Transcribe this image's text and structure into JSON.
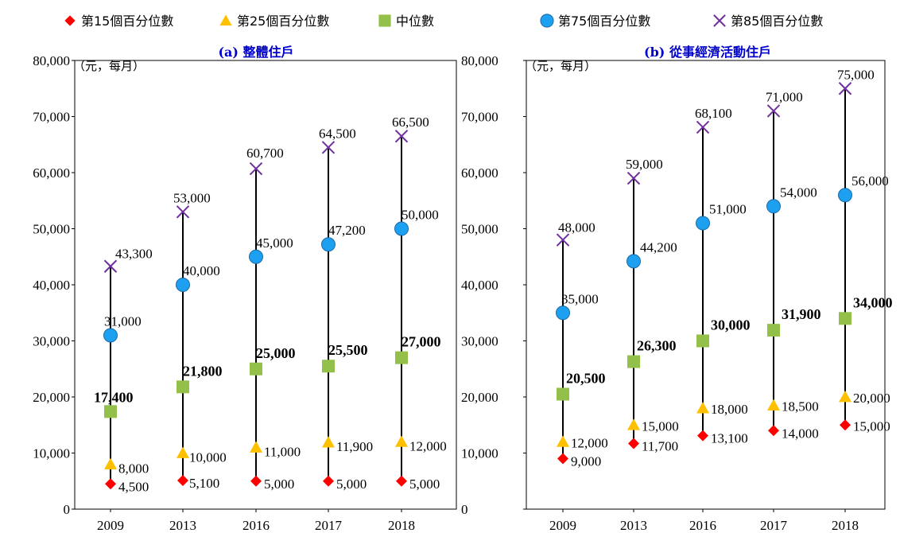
{
  "legend": [
    {
      "key": "p15",
      "label": "第15個百分位數",
      "marker": "diamond",
      "color": "#ff0000"
    },
    {
      "key": "p25",
      "label": "第25個百分位數",
      "marker": "triangle",
      "color": "#ffc000"
    },
    {
      "key": "median",
      "label": "中位數",
      "marker": "square",
      "color": "#92c048"
    },
    {
      "key": "p75",
      "label": "第75個百分位數",
      "marker": "circle",
      "color": "#1ea0f0"
    },
    {
      "key": "p85",
      "label": "第85個百分位數",
      "marker": "x",
      "color": "#7030a0"
    }
  ],
  "chart_data": [
    {
      "type": "scatter",
      "title": "(a) 整體住戶",
      "ylabel": "（元，每月）",
      "ylim": [
        0,
        80000
      ],
      "yticks": [
        0,
        10000,
        20000,
        30000,
        40000,
        50000,
        60000,
        70000,
        80000
      ],
      "ytick_labels": [
        "0",
        "10,000",
        "20,000",
        "30,000",
        "40,000",
        "50,000",
        "60,000",
        "70,000",
        "80,000"
      ],
      "categories": [
        "2009",
        "2013",
        "2016",
        "2017",
        "2018"
      ],
      "series": [
        {
          "key": "p15",
          "name": "第15個百分位數",
          "values": [
            4500,
            5100,
            5000,
            5000,
            5000
          ],
          "labels": [
            "4,500",
            "5,100",
            "5,000",
            "5,000",
            "5,000"
          ]
        },
        {
          "key": "p25",
          "name": "第25個百分位數",
          "values": [
            8000,
            10000,
            11000,
            11900,
            12000
          ],
          "labels": [
            "8,000",
            "10,000",
            "11,000",
            "11,900",
            "12,000"
          ]
        },
        {
          "key": "median",
          "name": "中位數",
          "values": [
            17400,
            21800,
            25000,
            25500,
            27000
          ],
          "labels": [
            "17,400",
            "21,800",
            "25,000",
            "25,500",
            "27,000"
          ]
        },
        {
          "key": "p75",
          "name": "第75個百分位數",
          "values": [
            31000,
            40000,
            45000,
            47200,
            50000
          ],
          "labels": [
            "31,000",
            "40,000",
            "45,000",
            "47,200",
            "50,000"
          ]
        },
        {
          "key": "p85",
          "name": "第85個百分位數",
          "values": [
            43300,
            53000,
            60700,
            64500,
            66500
          ],
          "labels": [
            "43,300",
            "53,000",
            "60,700",
            "64,500",
            "66,500"
          ]
        }
      ]
    },
    {
      "type": "scatter",
      "title": "(b) 從事經濟活動住戶",
      "ylabel": "（元，每月）",
      "ylim": [
        0,
        80000
      ],
      "yticks": [
        0,
        10000,
        20000,
        30000,
        40000,
        50000,
        60000,
        70000,
        80000
      ],
      "ytick_labels": [
        "0",
        "10,000",
        "20,000",
        "30,000",
        "40,000",
        "50,000",
        "60,000",
        "70,000",
        "80,000"
      ],
      "categories": [
        "2009",
        "2013",
        "2016",
        "2017",
        "2018"
      ],
      "series": [
        {
          "key": "p15",
          "name": "第15個百分位數",
          "values": [
            9000,
            11700,
            13100,
            14000,
            15000
          ],
          "labels": [
            "9,000",
            "11,700",
            "13,100",
            "14,000",
            "15,000"
          ]
        },
        {
          "key": "p25",
          "name": "第25個百分位數",
          "values": [
            12000,
            15000,
            18000,
            18500,
            20000
          ],
          "labels": [
            "12,000",
            "15,000",
            "18,000",
            "18,500",
            "20,000"
          ]
        },
        {
          "key": "median",
          "name": "中位數",
          "values": [
            20500,
            26300,
            30000,
            31900,
            34000
          ],
          "labels": [
            "20,500",
            "26,300",
            "30,000",
            "31,900",
            "34,000"
          ]
        },
        {
          "key": "p75",
          "name": "第75個百分位數",
          "values": [
            35000,
            44200,
            51000,
            54000,
            56000
          ],
          "labels": [
            "35,000",
            "44,200",
            "51,000",
            "54,000",
            "56,000"
          ]
        },
        {
          "key": "p85",
          "name": "第85個百分位數",
          "values": [
            48000,
            59000,
            68100,
            71000,
            75000
          ],
          "labels": [
            "48,000",
            "59,000",
            "68,100",
            "71,000",
            "75,000"
          ]
        }
      ]
    }
  ]
}
